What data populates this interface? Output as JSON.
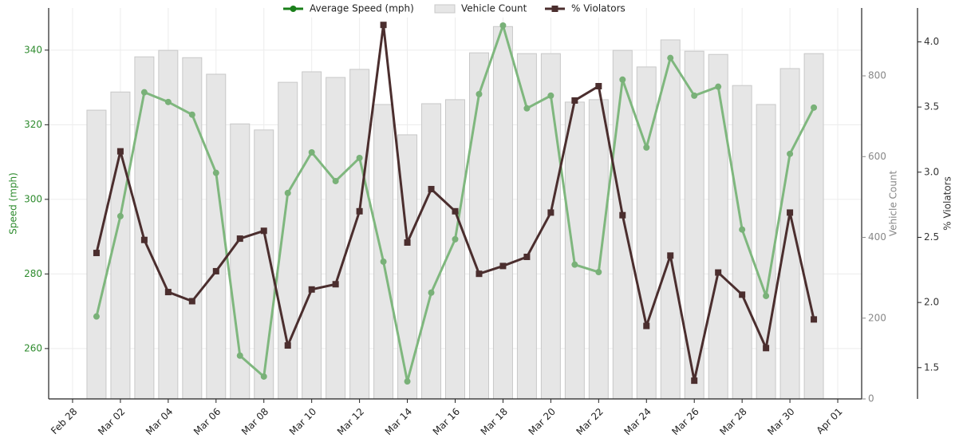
{
  "chart_data": {
    "type": "combo",
    "x": [
      "Mar 01",
      "Mar 02",
      "Mar 03",
      "Mar 04",
      "Mar 05",
      "Mar 06",
      "Mar 07",
      "Mar 08",
      "Mar 09",
      "Mar 10",
      "Mar 11",
      "Mar 12",
      "Mar 13",
      "Mar 14",
      "Mar 15",
      "Mar 16",
      "Mar 17",
      "Mar 18",
      "Mar 19",
      "Mar 20",
      "Mar 21",
      "Mar 22",
      "Mar 23",
      "Mar 24",
      "Mar 25",
      "Mar 26",
      "Mar 27",
      "Mar 28",
      "Mar 29",
      "Mar 30",
      "Mar 31"
    ],
    "xlim": [
      "Feb 27",
      "Apr 02"
    ],
    "xticks": [
      "Feb 28",
      "Mar 02",
      "Mar 04",
      "Mar 06",
      "Mar 08",
      "Mar 10",
      "Mar 12",
      "Mar 14",
      "Mar 16",
      "Mar 18",
      "Mar 20",
      "Mar 22",
      "Mar 24",
      "Mar 26",
      "Mar 28",
      "Mar 30",
      "Apr 01"
    ],
    "ylabel": "Speed (mph)",
    "y2label": "Vehicle Count",
    "y3label": "% Violators",
    "ylim": [
      246.5,
      351.3
    ],
    "yticks": [
      260,
      280,
      300,
      320,
      340
    ],
    "y2lim": [
      0,
      968
    ],
    "y2ticks": [
      0,
      200,
      400,
      600,
      800
    ],
    "y3lim": [
      1.26,
      4.26
    ],
    "y3ticks": [
      {
        "value": 1.5,
        "label": "1.5"
      },
      {
        "value": 2,
        "label": "2.0"
      },
      {
        "value": 2.5,
        "label": "2.5"
      },
      {
        "value": 3,
        "label": "3.0"
      },
      {
        "value": 3.5,
        "label": "3.5"
      },
      {
        "value": 4,
        "label": "4.0"
      }
    ],
    "grid": true,
    "legend": "top",
    "series": [
      {
        "name": "Average Speed (mph)",
        "type": "line",
        "axis": "y",
        "color": "#7fb77e",
        "marker_color": "#79b178",
        "values": [
          268.6,
          295.5,
          328.7,
          326.1,
          322.7,
          307.1,
          258.1,
          252.5,
          301.7,
          312.6,
          304.9,
          311.1,
          283.3,
          251.2,
          275.0,
          289.3,
          328.2,
          346.6,
          324.4,
          327.8,
          282.5,
          280.5,
          332.1,
          313.9,
          337.9,
          327.8,
          330.2,
          291.9,
          274.1,
          312.2,
          324.6
        ]
      },
      {
        "name": "Vehicle Count",
        "type": "bar",
        "axis": "y2",
        "color": "#e6e6e6",
        "values": [
          715,
          760,
          847,
          863,
          845,
          804,
          681,
          666,
          784,
          810,
          796,
          816,
          729,
          654,
          731,
          741,
          857,
          922,
          855,
          855,
          735,
          741,
          863,
          822,
          889,
          861,
          853,
          776,
          729,
          818,
          855
        ]
      },
      {
        "name": "% Violators",
        "type": "line",
        "axis": "y3",
        "color": "#4b2e2e",
        "marker": "square",
        "values": [
          2.38,
          3.16,
          2.48,
          2.08,
          2.01,
          2.24,
          2.49,
          2.55,
          1.67,
          2.1,
          2.14,
          2.7,
          4.13,
          2.46,
          2.87,
          2.7,
          2.22,
          2.28,
          2.35,
          2.69,
          3.55,
          3.66,
          2.67,
          1.82,
          2.36,
          1.4,
          2.23,
          2.06,
          1.65,
          2.69,
          1.87
        ]
      }
    ]
  }
}
